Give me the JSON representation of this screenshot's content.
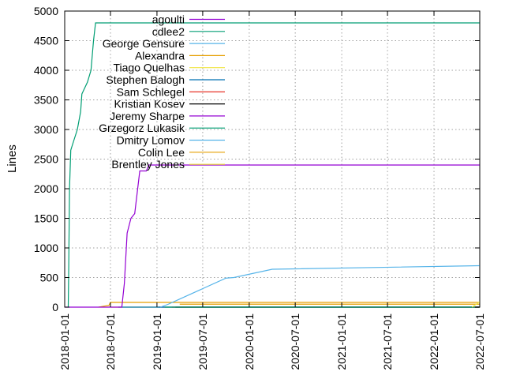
{
  "chart_data": {
    "type": "line",
    "title": "",
    "xlabel": "",
    "ylabel": "Lines",
    "xlim": [
      "2018-01-01",
      "2022-07-01"
    ],
    "ylim": [
      0,
      5000
    ],
    "grid": true,
    "legend_position": "top-right",
    "x_ticks": [
      "2018-01-01",
      "2018-07-01",
      "2019-01-01",
      "2019-07-01",
      "2020-01-01",
      "2020-07-01",
      "2021-01-01",
      "2021-07-01",
      "2022-01-01",
      "2022-07-01"
    ],
    "y_ticks": [
      0,
      500,
      1000,
      1500,
      2000,
      2500,
      3000,
      3500,
      4000,
      4500,
      5000
    ],
    "series": [
      {
        "name": "agoulti",
        "color": "#9400d3",
        "points": [
          [
            "2019-01-08",
            0
          ],
          [
            "2022-06-30",
            0
          ]
        ]
      },
      {
        "name": "cdlee2",
        "color": "#009e73",
        "points": [
          [
            "2018-01-15",
            0
          ],
          [
            "2018-01-17",
            700
          ],
          [
            "2018-01-20",
            2000
          ],
          [
            "2018-01-25",
            2650
          ],
          [
            "2018-02-05",
            2800
          ],
          [
            "2018-02-20",
            3000
          ],
          [
            "2018-03-05",
            3300
          ],
          [
            "2018-03-10",
            3600
          ],
          [
            "2018-04-01",
            3800
          ],
          [
            "2018-04-15",
            4000
          ],
          [
            "2018-04-25",
            4500
          ],
          [
            "2018-05-03",
            4800
          ],
          [
            "2022-06-30",
            4800
          ]
        ]
      },
      {
        "name": "George Gensure",
        "color": "#56b4e9",
        "points": [
          [
            "2019-01-01",
            0
          ],
          [
            "2022-06-30",
            0
          ]
        ]
      },
      {
        "name": "Alexandra",
        "color": "#e69f00",
        "points": [
          [
            "2018-05-15",
            0
          ],
          [
            "2018-06-25",
            30
          ],
          [
            "2018-07-01",
            80
          ],
          [
            "2022-06-30",
            80
          ]
        ]
      },
      {
        "name": "Tiago Quelhas",
        "color": "#f0e442",
        "points": [
          [
            "2018-07-01",
            0
          ],
          [
            "2022-06-30",
            0
          ]
        ]
      },
      {
        "name": "Stephen Balogh",
        "color": "#0072b2",
        "points": [
          [
            "2018-08-01",
            0
          ],
          [
            "2022-06-30",
            0
          ]
        ]
      },
      {
        "name": "Sam Schlegel",
        "color": "#e51e10",
        "points": [
          [
            "2019-03-01",
            0
          ],
          [
            "2022-06-30",
            0
          ]
        ]
      },
      {
        "name": "Kristian Kosev",
        "color": "#000000",
        "points": [
          [
            "2019-03-15",
            0
          ],
          [
            "2022-06-30",
            0
          ]
        ]
      },
      {
        "name": "Jeremy Sharpe",
        "color": "#9400d3",
        "points": [
          [
            "2018-01-01",
            0
          ],
          [
            "2018-08-15",
            0
          ],
          [
            "2018-08-25",
            400
          ],
          [
            "2018-09-05",
            1250
          ],
          [
            "2018-09-20",
            1500
          ],
          [
            "2018-10-05",
            1580
          ],
          [
            "2018-10-25",
            2300
          ],
          [
            "2018-11-20",
            2300
          ],
          [
            "2018-11-30",
            2400
          ],
          [
            "2022-06-30",
            2400
          ]
        ]
      },
      {
        "name": "Grzegorz Lukasik",
        "color": "#009e73",
        "points": [
          [
            "2019-02-01",
            0
          ],
          [
            "2022-06-30",
            0
          ]
        ]
      },
      {
        "name": "Dmitry Lomov",
        "color": "#56b4e9",
        "points": [
          [
            "2019-01-15",
            0
          ],
          [
            "2019-02-15",
            50
          ],
          [
            "2019-10-01",
            490
          ],
          [
            "2019-11-01",
            500
          ],
          [
            "2020-04-01",
            640
          ],
          [
            "2022-06-30",
            700
          ]
        ]
      },
      {
        "name": "Colin Lee",
        "color": "#e69f00",
        "points": [
          [
            "2019-04-01",
            50
          ],
          [
            "2022-06-30",
            50
          ]
        ]
      },
      {
        "name": "Brentley Jones",
        "color": "#f0e442",
        "points": [
          [
            "2022-06-01",
            0
          ],
          [
            "2022-06-30",
            90
          ]
        ]
      }
    ]
  }
}
